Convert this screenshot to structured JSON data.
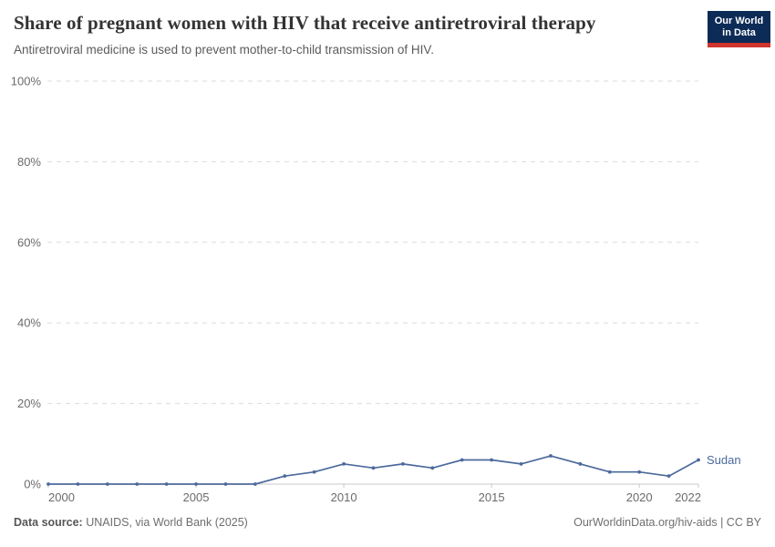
{
  "logo": {
    "line1": "Our World",
    "line2": "in Data",
    "bg_color": "#0c2b56",
    "accent_color": "#d0342c"
  },
  "chart_data": {
    "type": "line",
    "title": "Share of pregnant women with HIV that receive antiretroviral therapy",
    "subtitle": "Antiretroviral medicine is used to prevent mother-to-child transmission of HIV.",
    "x": [
      2000,
      2001,
      2002,
      2003,
      2004,
      2005,
      2006,
      2007,
      2008,
      2009,
      2010,
      2011,
      2012,
      2013,
      2014,
      2015,
      2016,
      2017,
      2018,
      2019,
      2020,
      2021,
      2022
    ],
    "series": [
      {
        "name": "Sudan",
        "color": "#4c6a9c",
        "values": [
          0,
          0,
          0,
          0,
          0,
          0,
          0,
          0,
          2,
          3,
          5,
          4,
          5,
          4,
          6,
          6,
          5,
          7,
          5,
          3,
          3,
          2,
          6
        ]
      }
    ],
    "xlim": [
      2000,
      2022
    ],
    "ylim": [
      0,
      100
    ],
    "x_ticks": [
      2000,
      2005,
      2010,
      2015,
      2020,
      2022
    ],
    "y_ticks": [
      0,
      20,
      40,
      60,
      80,
      100
    ],
    "y_suffix": "%",
    "grid": "horizontal-dashed",
    "legend": "end-of-line-label"
  },
  "footer": {
    "source_prefix": "Data source:",
    "source": "UNAIDS, via World Bank (2025)",
    "credit": "OurWorldinData.org/hiv-aids | CC BY"
  }
}
